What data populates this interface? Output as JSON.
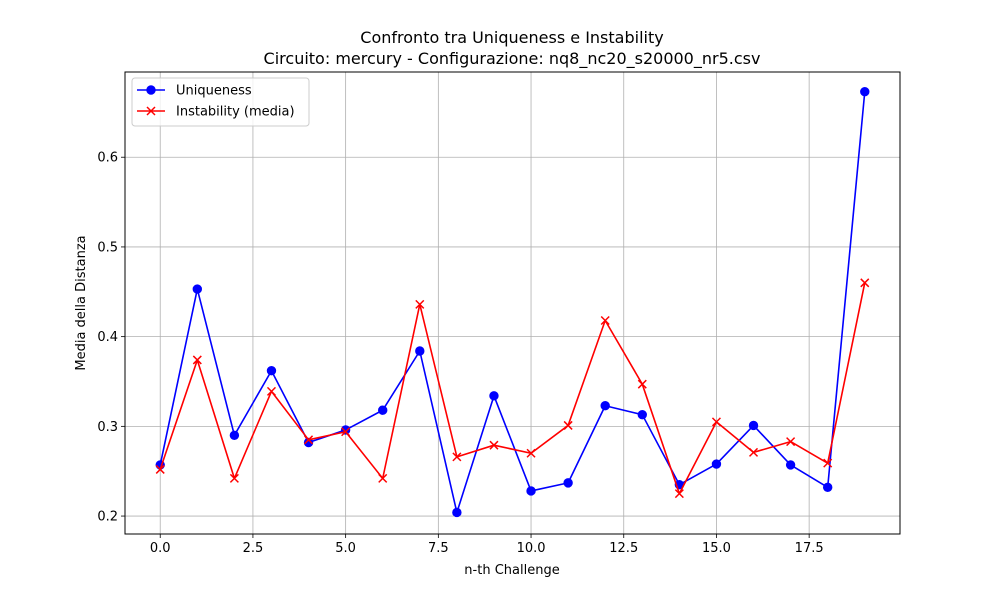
{
  "chart_data": {
    "type": "line",
    "title": "Confronto tra Uniqueness e Instability",
    "subtitle": "Circuito: mercury - Configurazione: nq8_nc20_s20000_nr5.csv",
    "xlabel": "n-th Challenge",
    "ylabel": "Media della Distanza",
    "xlim": [
      -0.95,
      19.95
    ],
    "ylim": [
      0.18,
      0.695
    ],
    "xticks": [
      0.0,
      2.5,
      5.0,
      7.5,
      10.0,
      12.5,
      15.0,
      17.5
    ],
    "xtick_labels": [
      "0.0",
      "2.5",
      "5.0",
      "7.5",
      "10.0",
      "12.5",
      "15.0",
      "17.5"
    ],
    "yticks": [
      0.2,
      0.3,
      0.4,
      0.5,
      0.6
    ],
    "ytick_labels": [
      "0.2",
      "0.3",
      "0.4",
      "0.5",
      "0.6"
    ],
    "grid": true,
    "legend_position": "top-left",
    "x": [
      0,
      1,
      2,
      3,
      4,
      5,
      6,
      7,
      8,
      9,
      10,
      11,
      12,
      13,
      14,
      15,
      16,
      17,
      18,
      19
    ],
    "series": [
      {
        "name": "Uniqueness",
        "color": "#0000ff",
        "marker": "circle",
        "values": [
          0.257,
          0.453,
          0.29,
          0.362,
          0.282,
          0.296,
          0.318,
          0.384,
          0.204,
          0.334,
          0.228,
          0.237,
          0.323,
          0.313,
          0.235,
          0.258,
          0.301,
          0.257,
          0.232,
          0.673
        ]
      },
      {
        "name": "Instability (media)",
        "color": "#ff0000",
        "marker": "x",
        "values": [
          0.252,
          0.374,
          0.242,
          0.339,
          0.285,
          0.294,
          0.242,
          0.436,
          0.266,
          0.279,
          0.27,
          0.301,
          0.418,
          0.347,
          0.225,
          0.305,
          0.271,
          0.283,
          0.259,
          0.46
        ]
      }
    ]
  }
}
